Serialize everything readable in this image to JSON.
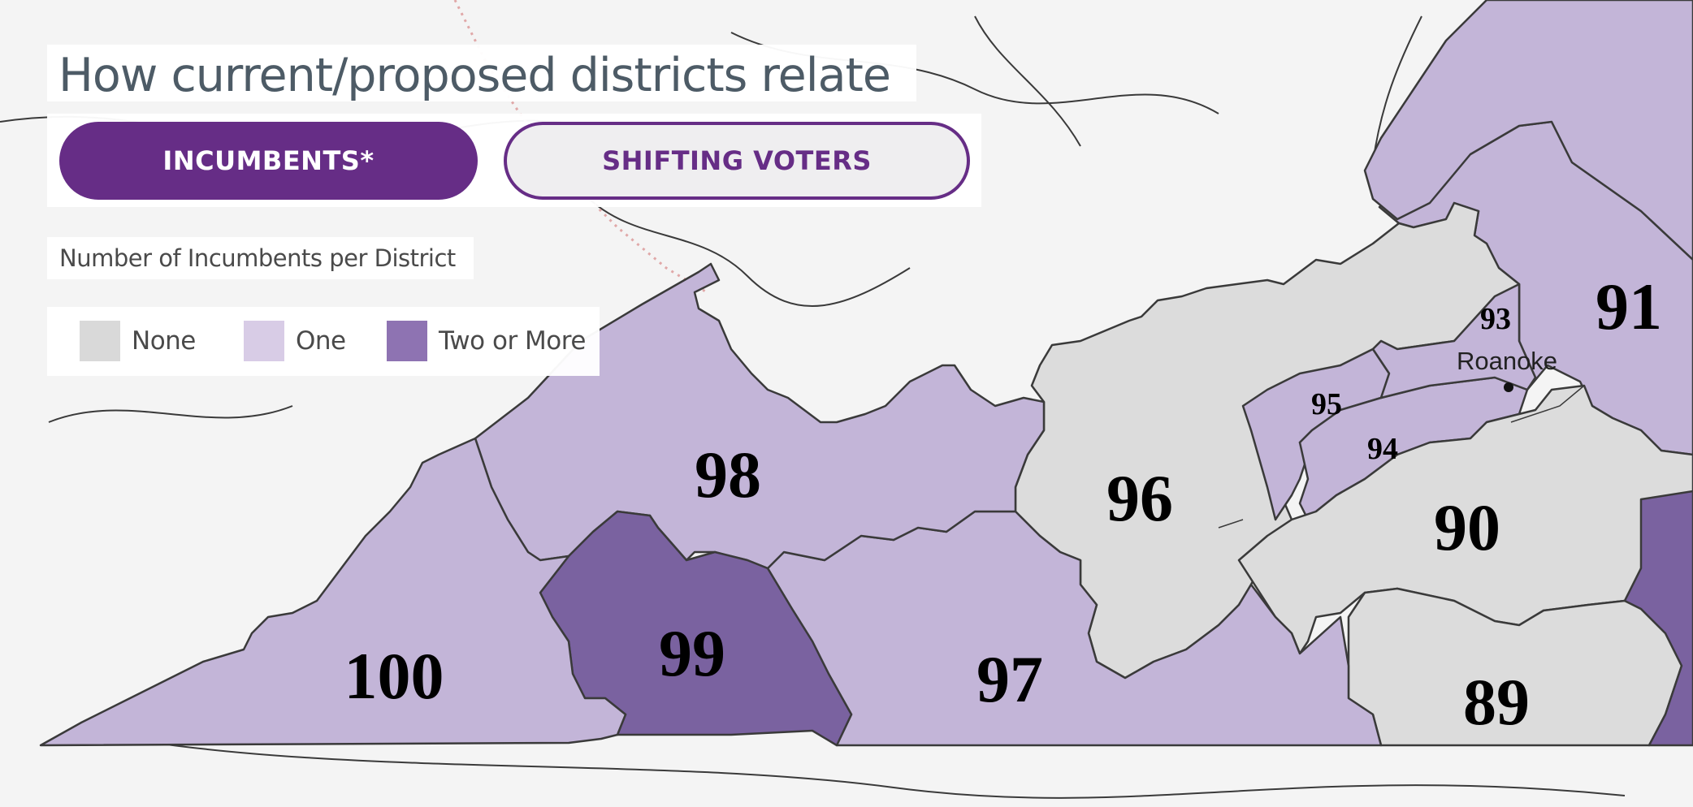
{
  "title": "How current/proposed districts relate",
  "toggle": {
    "incumbents_label": "INCUMBENTS*",
    "shifting_label": "SHIFTING VOTERS",
    "active": "incumbents"
  },
  "legend": {
    "title": "Number of Incumbents per District",
    "items": [
      {
        "label": "None",
        "color": "#d9d9d9"
      },
      {
        "label": "One",
        "color": "#d8cce6"
      },
      {
        "label": "Two or More",
        "color": "#8e73b2"
      }
    ]
  },
  "map": {
    "colors": {
      "none": "#dcdcdc",
      "one": "#c3b5d8",
      "two_or_more": "#7a62a0",
      "background": "#f4f4f4",
      "border": "#3a3a3a"
    },
    "districts": [
      {
        "label": "100",
        "incumbents": "one"
      },
      {
        "label": "99",
        "incumbents": "two_or_more"
      },
      {
        "label": "98",
        "incumbents": "one"
      },
      {
        "label": "97",
        "incumbents": "one"
      },
      {
        "label": "96",
        "incumbents": "none"
      },
      {
        "label": "95",
        "incumbents": "one"
      },
      {
        "label": "94",
        "incumbents": "one"
      },
      {
        "label": "93",
        "incumbents": "one"
      },
      {
        "label": "91",
        "incumbents": "one"
      },
      {
        "label": "90",
        "incumbents": "none"
      },
      {
        "label": "89",
        "incumbents": "none"
      }
    ],
    "city_label": "Roanoke"
  }
}
